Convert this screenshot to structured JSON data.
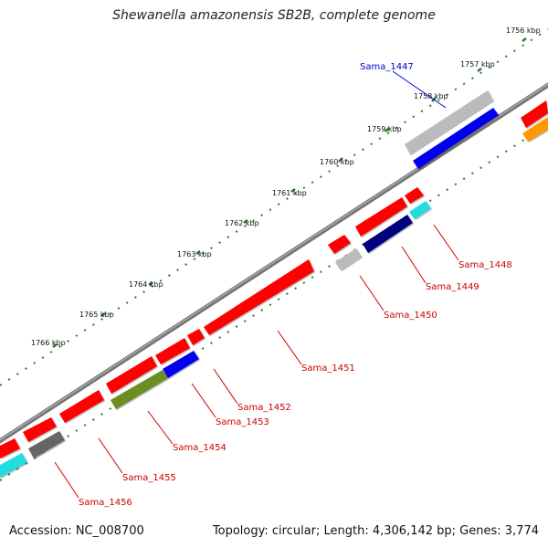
{
  "title": "Shewanella amazonensis SB2B, complete genome",
  "accession": "Accession: NC_008700",
  "summary": "Topology: circular; Length: 4,306,142 bp; Genes: 3,774",
  "tick_labels": [
    "1756 kbp",
    "1757 kbp",
    "1758 kbp",
    "1759 kbp",
    "1760 kbp",
    "1761 kbp",
    "1762 kbp",
    "1763 kbp",
    "1764 kbp",
    "1765 kbp",
    "1766 kbp"
  ],
  "genes": [
    {
      "label": "Sama_1447",
      "color": "#0000cc"
    },
    {
      "label": "Sama_1448",
      "color": "#cc0000"
    },
    {
      "label": "Sama_1449",
      "color": "#cc0000"
    },
    {
      "label": "Sama_1450",
      "color": "#cc0000"
    },
    {
      "label": "Sama_1451",
      "color": "#cc0000"
    },
    {
      "label": "Sama_1452",
      "color": "#cc0000"
    },
    {
      "label": "Sama_1453",
      "color": "#cc0000"
    },
    {
      "label": "Sama_1454",
      "color": "#cc0000"
    },
    {
      "label": "Sama_1455",
      "color": "#cc0000"
    },
    {
      "label": "Sama_1456",
      "color": "#cc0000"
    }
  ],
  "colors": {
    "red": "#ff0000",
    "blue": "#0000ee",
    "navy": "#000080",
    "gray": "#bbbbbb",
    "dark_gray": "#666666",
    "olive": "#6b8e23",
    "cyan": "#22dddd",
    "orange": "#ff9900",
    "tick": "#2a7a2a"
  }
}
